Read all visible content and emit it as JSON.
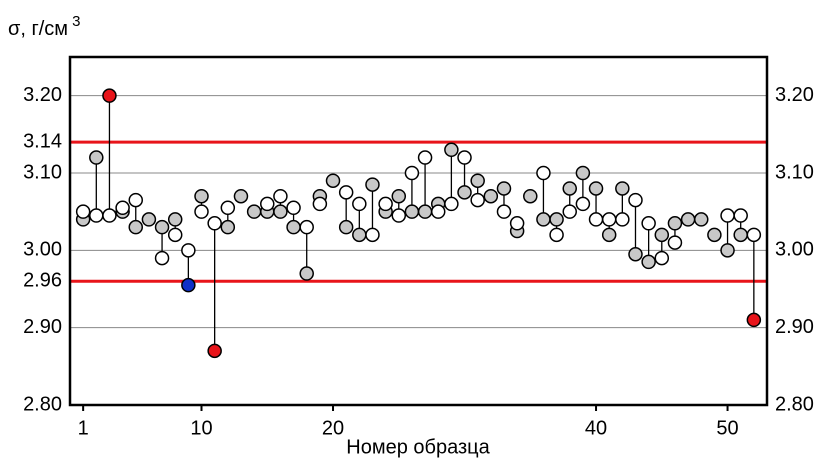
{
  "chart_data": {
    "type": "paired-scatter",
    "y_label": "σ, г/см",
    "y_label_sup": "3",
    "x_label": "Номер образца",
    "x": [
      1,
      2,
      3,
      4,
      5,
      6,
      7,
      8,
      9,
      10,
      11,
      12,
      13,
      14,
      15,
      16,
      17,
      18,
      19,
      20,
      21,
      22,
      23,
      24,
      25,
      26,
      27,
      28,
      29,
      30,
      31,
      32,
      33,
      34,
      35,
      36,
      37,
      38,
      39,
      40,
      41,
      42,
      43,
      44,
      45,
      46,
      47,
      48,
      49,
      50,
      51,
      52
    ],
    "series": [
      {
        "color": "#c8c8c8",
        "point_colors": [
          "#c8c8c8",
          "#c8c8c8",
          "#e8141a",
          "#c8c8c8",
          "#c8c8c8",
          "#c8c8c8",
          "#c8c8c8",
          "#c8c8c8",
          "#1030c8",
          "#c8c8c8",
          "#e8141a",
          "#c8c8c8",
          "#c8c8c8",
          "#c8c8c8",
          "#c8c8c8",
          "#c8c8c8",
          "#c8c8c8",
          "#c8c8c8",
          "#c8c8c8",
          "#c8c8c8",
          "#c8c8c8",
          "#c8c8c8",
          "#c8c8c8",
          "#c8c8c8",
          "#c8c8c8",
          "#c8c8c8",
          "#c8c8c8",
          "#c8c8c8",
          "#c8c8c8",
          "#c8c8c8",
          "#c8c8c8",
          "#c8c8c8",
          "#c8c8c8",
          "#c8c8c8",
          "#c8c8c8",
          "#c8c8c8",
          "#c8c8c8",
          "#c8c8c8",
          "#c8c8c8",
          "#c8c8c8",
          "#c8c8c8",
          "#c8c8c8",
          "#c8c8c8",
          "#c8c8c8",
          "#c8c8c8",
          "#c8c8c8",
          "#c8c8c8",
          "#c8c8c8",
          "#c8c8c8",
          "#c8c8c8",
          "#c8c8c8",
          "#e8141a"
        ],
        "values": [
          3.04,
          3.12,
          3.2,
          3.05,
          3.03,
          3.04,
          3.03,
          3.04,
          2.955,
          3.07,
          2.87,
          3.03,
          3.07,
          3.05,
          3.05,
          3.05,
          3.03,
          2.97,
          3.07,
          3.09,
          3.03,
          3.02,
          3.085,
          3.05,
          3.07,
          3.05,
          3.05,
          3.06,
          3.13,
          3.075,
          3.09,
          3.07,
          3.08,
          3.025,
          3.07,
          3.04,
          3.04,
          3.08,
          3.1,
          3.08,
          3.02,
          3.08,
          2.995,
          2.985,
          3.02,
          3.035,
          3.04,
          3.04,
          3.02,
          3.0,
          3.02,
          2.91
        ]
      },
      {
        "color": "#ffffff",
        "values": [
          3.05,
          3.045,
          3.045,
          3.055,
          3.065,
          null,
          2.99,
          3.02,
          3.0,
          3.05,
          3.035,
          3.055,
          null,
          null,
          3.06,
          3.07,
          3.055,
          3.03,
          3.06,
          null,
          3.075,
          3.06,
          3.02,
          3.06,
          3.045,
          3.1,
          3.12,
          3.05,
          3.06,
          3.12,
          3.065,
          null,
          3.05,
          3.035,
          null,
          3.1,
          3.02,
          3.05,
          3.06,
          3.04,
          3.04,
          3.04,
          3.065,
          3.035,
          2.99,
          3.01,
          null,
          null,
          null,
          3.045,
          3.045,
          3.02
        ]
      }
    ],
    "reference_lines": [
      3.14,
      2.96
    ],
    "reference_color": "#e8141a",
    "xlim": [
      0,
      53
    ],
    "xticks": [
      1,
      10,
      20,
      40,
      50
    ],
    "ylim": [
      2.8,
      3.25
    ],
    "yticks": [
      {
        "value": 2.8,
        "label": "2.80"
      },
      {
        "value": 2.9,
        "label": "2.90"
      },
      {
        "value": 2.96,
        "label": "2.96"
      },
      {
        "value": 3.0,
        "label": "3.00"
      },
      {
        "value": 3.1,
        "label": "3.10"
      },
      {
        "value": 3.14,
        "label": "3.14"
      },
      {
        "value": 3.2,
        "label": "3.20"
      }
    ],
    "y2lim": [
      2.8,
      3.25
    ],
    "y2ticks": [
      {
        "value": 2.8,
        "label": "2.80"
      },
      {
        "value": 2.9,
        "label": "2.90"
      },
      {
        "value": 3.0,
        "label": "3.00"
      },
      {
        "value": 3.1,
        "label": "3.10"
      },
      {
        "value": 3.2,
        "label": "3.20"
      }
    ],
    "grid": true
  }
}
